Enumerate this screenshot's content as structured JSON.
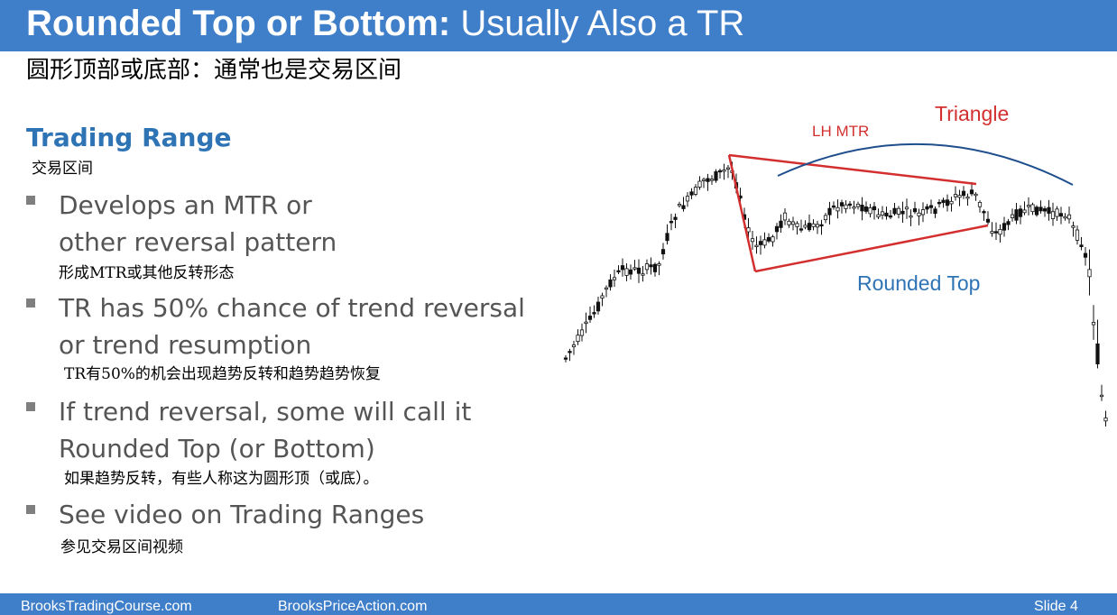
{
  "slide": {
    "title_bold": "Rounded Top or Bottom:",
    "title_rest": " Usually Also a TR",
    "subtitle_cn": "圆形顶部或底部：通常也是交易区间",
    "section_head": "Trading Range",
    "section_head_cn": "交易区间",
    "bullets": [
      {
        "line1": "Develops an MTR or",
        "line2": "other reversal pattern",
        "cn": "形成MTR或其他反转形态"
      },
      {
        "line1": "TR has 50% chance of trend reversal",
        "line2": "or trend resumption",
        "cn": "TR有50%的机会出现趋势反转和趋势趋势恢复"
      },
      {
        "line1": "If trend reversal, some will call it",
        "line2": "Rounded Top (or Bottom)",
        "cn": "如果趋势反转，有些人称这为圆形顶（或底）。"
      },
      {
        "line1": "See video on Trading Ranges",
        "line2": "",
        "cn": "参见交易区间视频"
      }
    ]
  },
  "chart": {
    "label_lh_mtr": "LH MTR",
    "label_triangle": "Triangle",
    "label_rounded_top": "Rounded Top",
    "colors": {
      "triangle": "#d32f2f",
      "arc": "#1f4e8c",
      "rounded_text": "#2e74b5",
      "label_red": "#d32f2f"
    }
  },
  "footer": {
    "left": "BrooksTradingCourse.com",
    "center": "BrooksPriceAction.com",
    "right": "Slide  4"
  }
}
